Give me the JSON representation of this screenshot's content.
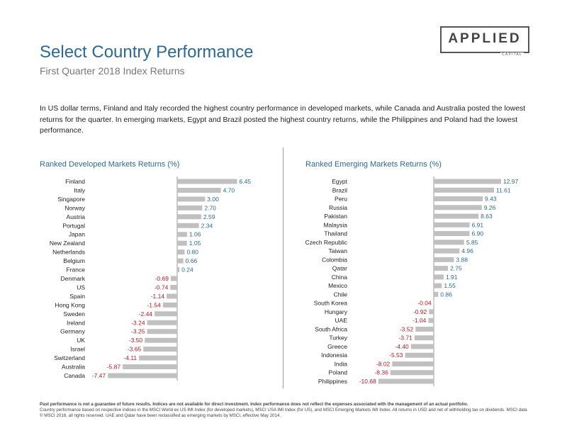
{
  "header": {
    "title": "Select Country Performance",
    "subtitle": "First Quarter 2018 Index Returns",
    "logo_main": "APPLIED",
    "logo_sub": "CAPITAL"
  },
  "description": "In US dollar terms, Finland and Italy recorded the highest country performance in developed markets, while Canada and Australia posted the lowest returns for the quarter. In emerging markets, Egypt and Brazil posted the highest country returns, while the Philippines and Poland had the lowest performance.",
  "footer": {
    "bold_line": "Past performance is not a guarantee of future results. Indices are not available for direct investment. Index performance does not reflect the expenses associated with the management of an actual portfolio.",
    "note": "Country performance based on respective indices in the MSCI World ex US IMI Index (for developed markets), MSCI USA IMI Index (for US), and MSCI Emerging Markets IMI Index. All returns in USD and net of withholding tax on dividends. MSCI data © MSCI 2018, all rights reserved. UAE and Qatar have been reclassified as emerging markets by MSCI, effective May 2014."
  },
  "colors": {
    "bar": "#c0c0c0",
    "positive_label": "#2b6a95",
    "negative_label": "#c8141e",
    "title": "#2b6a95",
    "axis": "#999999"
  },
  "chart_data": [
    {
      "type": "bar",
      "orientation": "horizontal",
      "title": "Ranked Developed Markets Returns (%)",
      "categories": [
        "Finland",
        "Italy",
        "Singapore",
        "Norway",
        "Austria",
        "Portugal",
        "Japan",
        "New Zealand",
        "Netherlands",
        "Belgium",
        "France",
        "Denmark",
        "US",
        "Spain",
        "Hong Kong",
        "Sweden",
        "Ireland",
        "Germany",
        "UK",
        "Israel",
        "Switzerland",
        "Australia",
        "Canada"
      ],
      "values": [
        6.45,
        4.7,
        3.0,
        2.7,
        2.59,
        2.34,
        1.06,
        1.05,
        0.8,
        0.66,
        0.24,
        -0.69,
        -0.74,
        -1.14,
        -1.54,
        -2.44,
        -3.24,
        -3.25,
        -3.5,
        -3.65,
        -4.11,
        -5.87,
        -7.47
      ],
      "labels": [
        "6.45",
        "4.70",
        "3.00",
        "2.70",
        "2.59",
        "2.34",
        "1.06",
        "1.05",
        "0.80",
        "0.66",
        "0.24",
        "-0.69",
        "-0.74",
        "-1.14",
        "-1.54",
        "-2.44",
        "-3.24",
        "-3.25",
        "-3.50",
        "-3.65",
        "-4.11",
        "-5.87",
        "-7.47"
      ]
    },
    {
      "type": "bar",
      "orientation": "horizontal",
      "title": "Ranked Emerging Markets Returns (%)",
      "categories": [
        "Egypt",
        "Brazil",
        "Peru",
        "Russia",
        "Pakistan",
        "Malaysia",
        "Thailand",
        "Czech Republic",
        "Taiwan",
        "Colombia",
        "Qatar",
        "China",
        "Mexico",
        "Chile",
        "South Korea",
        "Hungary",
        "UAE",
        "South Africa",
        "Turkey",
        "Greece",
        "Indonesia",
        "India",
        "Poland",
        "Philippines"
      ],
      "values": [
        12.97,
        11.61,
        9.43,
        9.26,
        8.63,
        6.91,
        6.9,
        5.85,
        4.96,
        3.88,
        2.75,
        1.91,
        1.55,
        0.86,
        -0.04,
        -0.92,
        -1.04,
        -3.52,
        -3.71,
        -4.4,
        -5.53,
        -8.02,
        -8.36,
        -10.68
      ],
      "labels": [
        "12.97",
        "11.61",
        "9.43",
        "9.26",
        "8.63",
        "6.91",
        "6.90",
        "5.85",
        "4.96",
        "3.88",
        "2.75",
        "1.91",
        "1.55",
        "0.86",
        "-0.04",
        "-0.92",
        "-1.04",
        "-3.52",
        "-3.71",
        "-4.40",
        "-5.53",
        "-8.02",
        "-8.36",
        "-10.68"
      ]
    }
  ]
}
